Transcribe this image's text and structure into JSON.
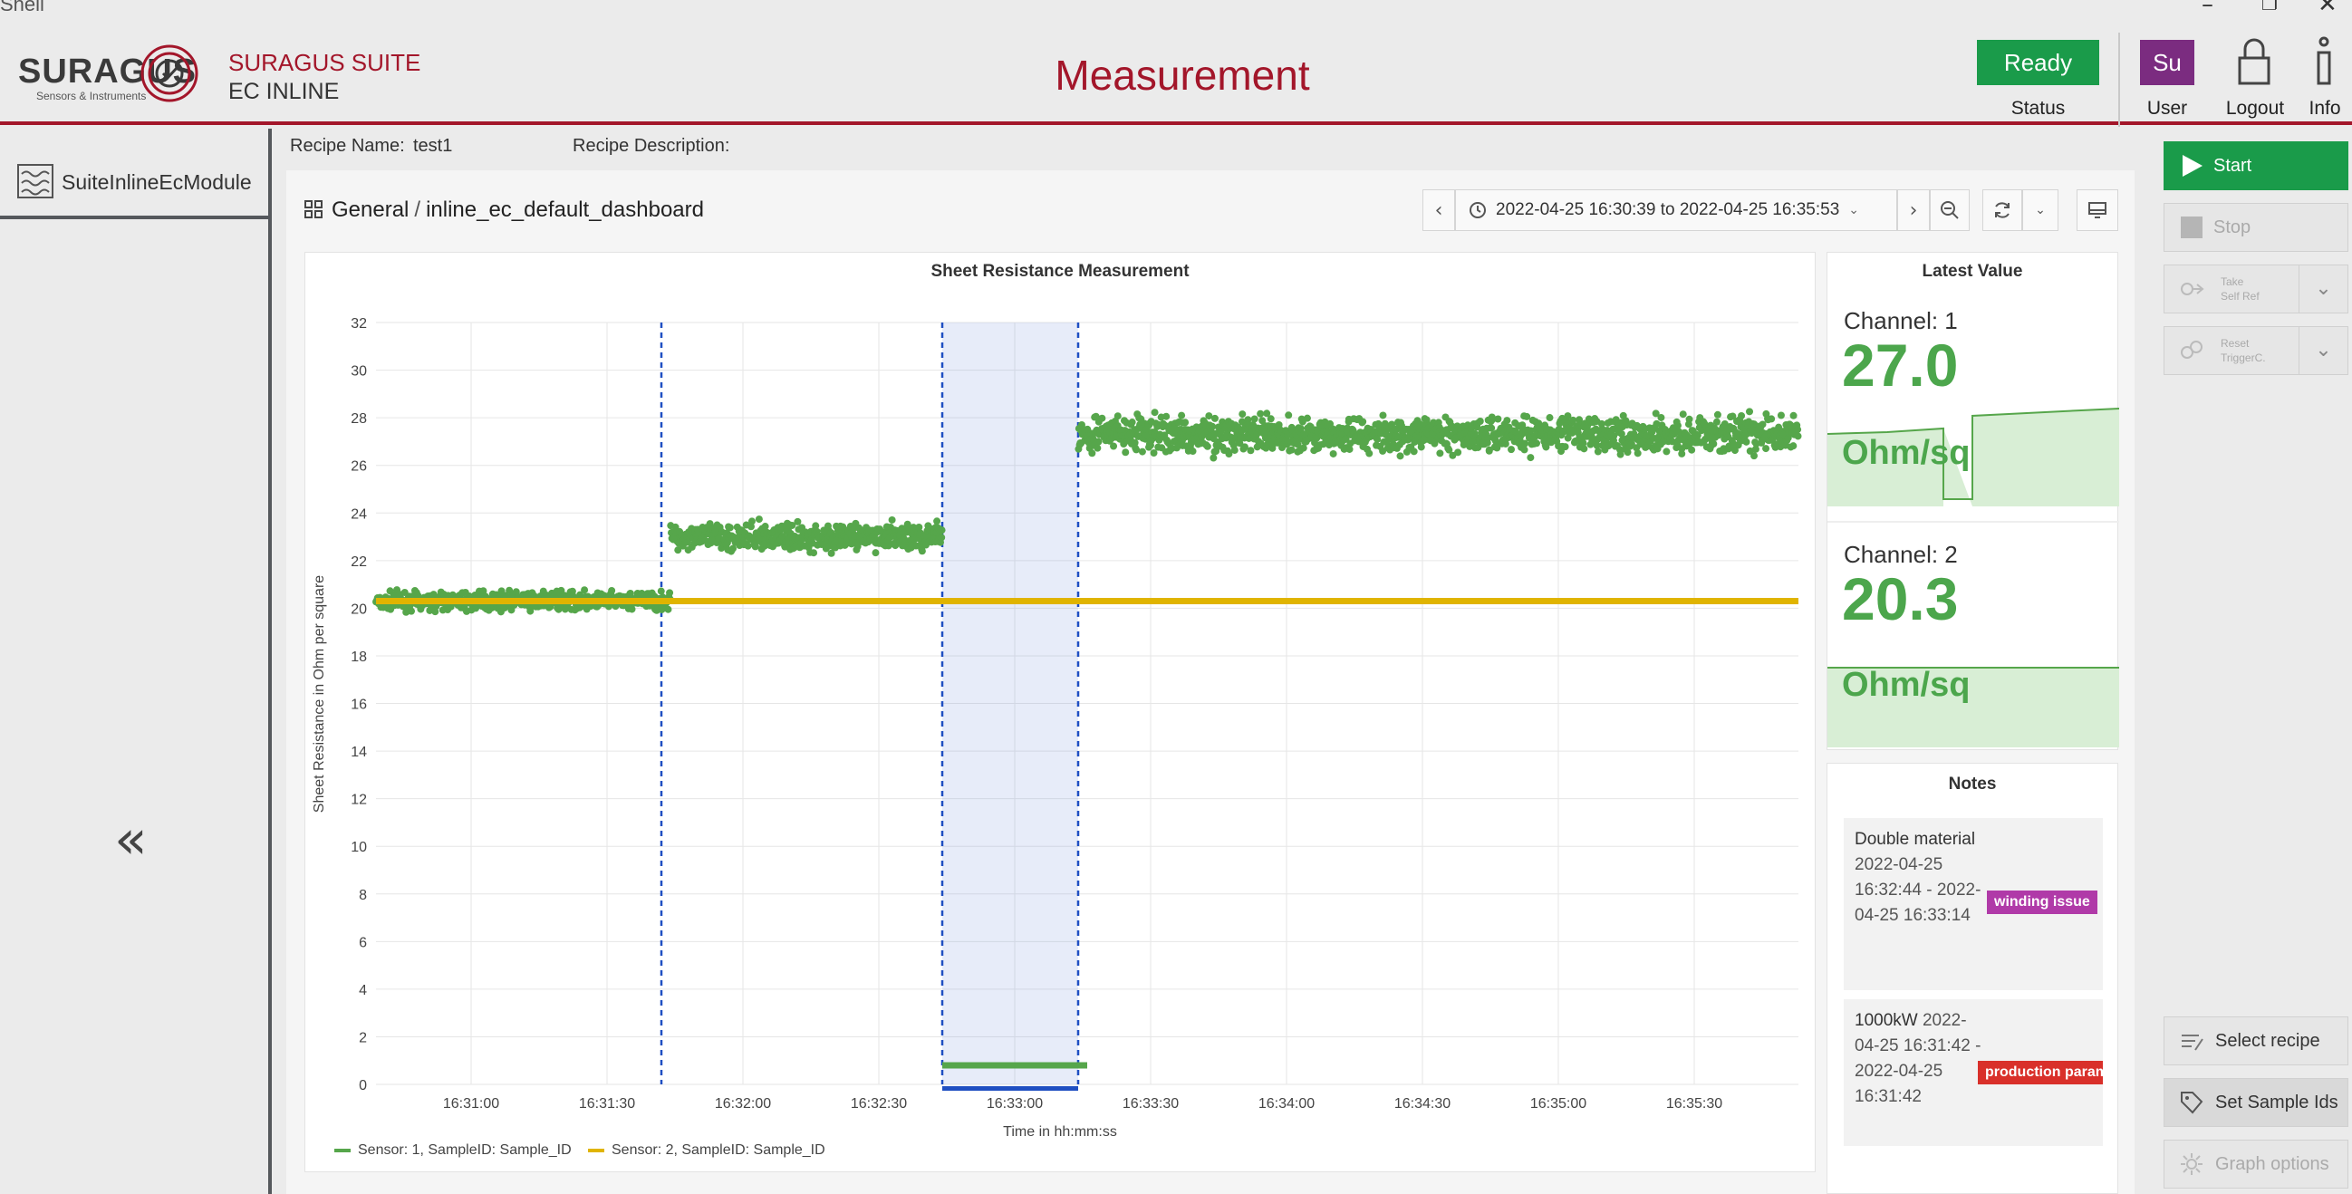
{
  "window": {
    "title": "Shell",
    "controls": [
      "minimize",
      "restore",
      "close"
    ]
  },
  "header": {
    "logo_text": "SURAGUS",
    "logo_sub": "Sensors & Instruments",
    "suite_title": "SURAGUS SUITE",
    "suite_sub": "EC INLINE",
    "page_title": "Measurement",
    "status": {
      "value": "Ready",
      "label": "Status",
      "color": "#1a9b4a"
    },
    "user": {
      "initials": "Su",
      "label": "User",
      "color": "#7b2c80"
    },
    "logout_label": "Logout",
    "info_label": "Info",
    "accent": "#a3162a"
  },
  "sidebar": {
    "module_label": "SuiteInlineEcModule",
    "collapse_icon": "double-chevron-left"
  },
  "recipe": {
    "name_label": "Recipe Name:",
    "name_value": "test1",
    "description_label": "Recipe Description:"
  },
  "dashboard": {
    "breadcrumb_folder": "General",
    "breadcrumb_sep": "/",
    "breadcrumb_name": "inline_ec_default_dashboard",
    "time_range": "2022-04-25 16:30:39 to 2022-04-25 16:35:53"
  },
  "chart_data": {
    "type": "scatter",
    "title": "Sheet Resistance Measurement",
    "xlabel": "Time in hh:mm:ss",
    "ylabel": "Sheet Resistance in Ohm per square",
    "ylim": [
      0,
      32
    ],
    "yticks": [
      0,
      2,
      4,
      6,
      8,
      10,
      12,
      14,
      16,
      18,
      20,
      22,
      24,
      26,
      28,
      30,
      32
    ],
    "xlim": [
      "16:30:39",
      "16:35:53"
    ],
    "xticks": [
      "16:31:00",
      "16:31:30",
      "16:32:00",
      "16:32:30",
      "16:33:00",
      "16:33:30",
      "16:34:00",
      "16:34:30",
      "16:35:00",
      "16:35:30"
    ],
    "grid": true,
    "legend_position": "bottom-left",
    "series": [
      {
        "name": "Sensor: 1, SampleID: Sample_ID",
        "color": "#56a64b",
        "segments": [
          {
            "start": "16:30:39",
            "end": "16:31:44",
            "mean": 20.3,
            "spread": 0.3
          },
          {
            "start": "16:31:44",
            "end": "16:32:44",
            "mean": 23.0,
            "spread": 0.45
          },
          {
            "start": "16:32:44",
            "end": "16:33:14",
            "mean": 0.8,
            "spread": 0.05
          },
          {
            "start": "16:33:14",
            "end": "16:35:53",
            "mean": 27.3,
            "spread": 0.6
          }
        ]
      },
      {
        "name": "Sensor: 2, SampleID: Sample_ID",
        "color": "#e0b400",
        "segments": [
          {
            "start": "16:30:39",
            "end": "16:35:53",
            "mean": 20.3,
            "spread": 0.03
          }
        ]
      }
    ],
    "annotations": [
      {
        "time": "16:31:42",
        "type": "line"
      },
      {
        "start": "16:32:44",
        "end": "16:33:14",
        "type": "region"
      }
    ]
  },
  "latest": {
    "title": "Latest Value",
    "channels": [
      {
        "label": "Channel: 1",
        "value": "27.0",
        "unit": "Ohm/sq"
      },
      {
        "label": "Channel: 2",
        "value": "20.3",
        "unit": "Ohm/sq"
      }
    ]
  },
  "notes": {
    "title": "Notes",
    "items": [
      {
        "text": "Double material",
        "time": "2022-04-25 16:32:44 - 2022-04-25 16:33:14",
        "tag": "winding issue",
        "tag_color": "#b03aa8"
      },
      {
        "text": "1000kW",
        "time": "2022-04-25 16:31:42 - 2022-04-25 16:31:42",
        "tag": "production paramet",
        "tag_color": "#d9302a"
      }
    ]
  },
  "actions": {
    "start": "Start",
    "stop": "Stop",
    "take_self_ref": [
      "Take",
      "Self Ref"
    ],
    "reset_trigger": [
      "Reset",
      "TriggerC."
    ],
    "select_recipe": "Select recipe",
    "set_sample_ids": "Set Sample Ids",
    "graph_options": "Graph options",
    "start_color": "#1a9b4a"
  }
}
